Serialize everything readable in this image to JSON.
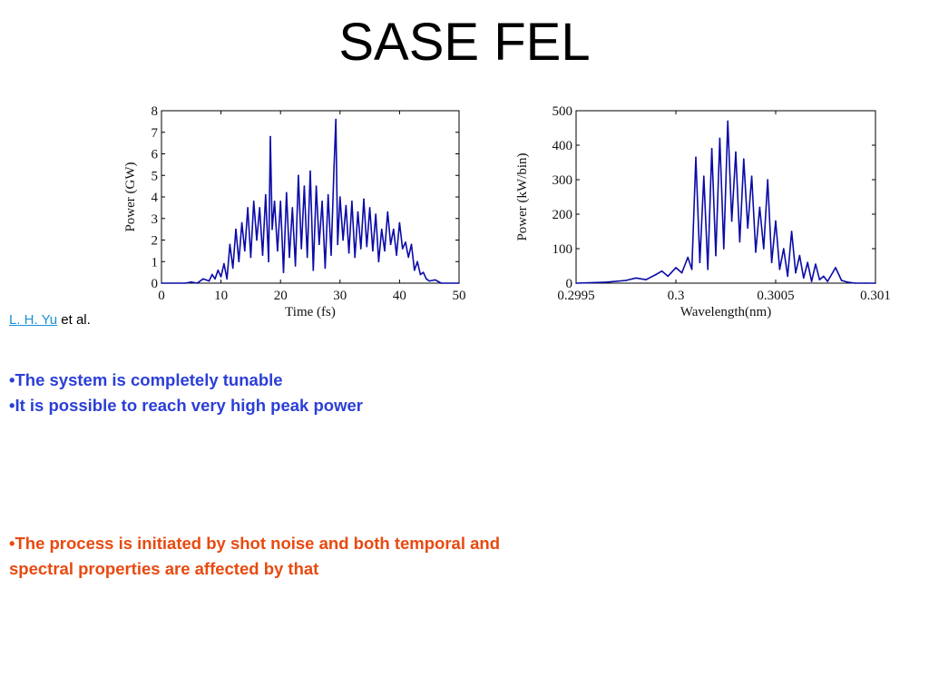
{
  "slide": {
    "title": "SASE FEL",
    "citation_link": "L. H. Yu",
    "citation_suffix": " et al.",
    "bullets": [
      "•The system is completely tunable",
      "•It is possible to reach very high peak power",
      "•The process is initiated by shot noise and both temporal and spectral properties are affected by that"
    ]
  },
  "colors": {
    "trace": "#0a0aa8",
    "bullet_blue": "#2b3fd6",
    "bullet_red": "#e84a10",
    "link": "#1a8fd6"
  },
  "chart_data": [
    {
      "type": "line",
      "xlabel": "Time (fs)",
      "ylabel": "Power (GW)",
      "xlim": [
        0,
        50
      ],
      "ylim": [
        0,
        8
      ],
      "xticks": [
        0,
        10,
        20,
        30,
        40,
        50
      ],
      "yticks": [
        0,
        1,
        2,
        3,
        4,
        5,
        6,
        7,
        8
      ],
      "xtick_labels": [
        "0",
        "10",
        "20",
        "30",
        "40",
        "50"
      ],
      "ytick_labels": [
        "0",
        "1",
        "2",
        "3",
        "4",
        "5",
        "6",
        "7",
        "8"
      ],
      "series": [
        {
          "x": [
            0,
            4,
            5,
            6,
            7,
            8,
            8.5,
            9,
            9.5,
            10,
            10.5,
            11,
            11.5,
            12,
            12.5,
            13,
            13.5,
            14,
            14.5,
            15,
            15.5,
            16,
            16.5,
            17,
            17.5,
            18,
            18.3,
            18.6,
            19,
            19.5,
            20,
            20.5,
            21,
            21.5,
            22,
            22.5,
            23,
            23.5,
            24,
            24.5,
            25,
            25.5,
            26,
            26.5,
            27,
            27.5,
            28,
            28.5,
            29,
            29.3,
            29.6,
            30,
            30.5,
            31,
            31.5,
            32,
            32.5,
            33,
            33.5,
            34,
            34.5,
            35,
            35.5,
            36,
            36.5,
            37,
            37.5,
            38,
            38.5,
            39,
            39.5,
            40,
            40.5,
            41,
            41.5,
            42,
            42.5,
            43,
            43.5,
            44,
            44.5,
            45,
            46,
            47,
            50
          ],
          "y": [
            0,
            0,
            0.05,
            0,
            0.2,
            0.1,
            0.4,
            0.2,
            0.6,
            0.3,
            0.9,
            0.2,
            1.8,
            0.7,
            2.5,
            1,
            2.8,
            1.5,
            3.5,
            1.2,
            3.8,
            2,
            3.5,
            1.3,
            4.1,
            1,
            6.8,
            2.5,
            3.8,
            1.5,
            3.8,
            0.5,
            4.2,
            1.2,
            3.5,
            0.8,
            5,
            1.6,
            4.5,
            1.2,
            5.2,
            0.6,
            4.5,
            1.8,
            3.8,
            0.7,
            4.1,
            1.3,
            5.4,
            7.6,
            1.8,
            4,
            2,
            3.6,
            1.4,
            3.8,
            1.2,
            3.3,
            1.6,
            3.9,
            1.7,
            3.5,
            1.5,
            3.2,
            1,
            2.5,
            1.5,
            3.3,
            1.8,
            2.5,
            1.3,
            2.8,
            1.6,
            1.9,
            1.2,
            1.8,
            0.6,
            1,
            0.4,
            0.5,
            0.2,
            0.1,
            0.15,
            0,
            0
          ]
        }
      ]
    },
    {
      "type": "line",
      "xlabel": "Wavelength(nm)",
      "ylabel": "Power (kW/bin)",
      "xlim": [
        0.2995,
        0.301
      ],
      "ylim": [
        0,
        500
      ],
      "xticks": [
        0.2995,
        0.3,
        0.3005,
        0.301
      ],
      "yticks": [
        0,
        100,
        200,
        300,
        400,
        500
      ],
      "xtick_labels": [
        "0.2995",
        "0.3",
        "0.3005",
        "0.301"
      ],
      "ytick_labels": [
        "0",
        "100",
        "200",
        "300",
        "400",
        "500"
      ],
      "series": [
        {
          "x": [
            0.2995,
            0.29965,
            0.29975,
            0.2998,
            0.29985,
            0.2999,
            0.29993,
            0.29996,
            0.3,
            0.30003,
            0.30006,
            0.30008,
            0.3001,
            0.30012,
            0.30014,
            0.30016,
            0.30018,
            0.3002,
            0.30022,
            0.30024,
            0.30026,
            0.30028,
            0.3003,
            0.30032,
            0.30034,
            0.30036,
            0.30038,
            0.3004,
            0.30042,
            0.30044,
            0.30046,
            0.30048,
            0.3005,
            0.30052,
            0.30054,
            0.30056,
            0.30058,
            0.3006,
            0.30062,
            0.30064,
            0.30066,
            0.30068,
            0.3007,
            0.30072,
            0.30074,
            0.30076,
            0.3008,
            0.30083,
            0.30086,
            0.3009,
            0.30095,
            0.301
          ],
          "y": [
            0,
            3,
            8,
            15,
            10,
            25,
            35,
            20,
            45,
            30,
            75,
            40,
            365,
            60,
            310,
            40,
            390,
            80,
            420,
            100,
            470,
            180,
            380,
            120,
            360,
            160,
            310,
            90,
            220,
            100,
            300,
            60,
            180,
            40,
            100,
            20,
            150,
            30,
            80,
            15,
            60,
            5,
            55,
            10,
            20,
            5,
            45,
            8,
            3,
            0,
            0,
            0
          ]
        }
      ]
    }
  ]
}
